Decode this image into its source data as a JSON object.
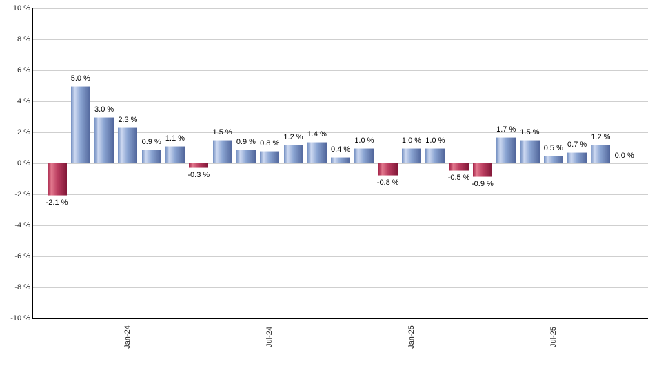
{
  "chart_data": {
    "type": "bar",
    "title": "",
    "xlabel": "",
    "ylabel": "",
    "ylim": [
      -10,
      10
    ],
    "y_tick_step": 2,
    "grid": true,
    "legend": "none",
    "values": [
      -2.1,
      5.0,
      3.0,
      2.3,
      0.9,
      1.1,
      -0.3,
      1.5,
      0.9,
      0.8,
      1.2,
      1.4,
      0.4,
      1.0,
      -0.8,
      1.0,
      1.0,
      -0.5,
      -0.9,
      1.7,
      1.5,
      0.5,
      0.7,
      1.2,
      0.0
    ],
    "bar_labels": [
      "-2.1 %",
      "5.0 %",
      "3.0 %",
      "2.3 %",
      "0.9 %",
      "1.1 %",
      "-0.3 %",
      "1.5 %",
      "0.9 %",
      "0.8 %",
      "1.2 %",
      "1.4 %",
      "0.4 %",
      "1.0 %",
      "-0.8 %",
      "1.0 %",
      "1.0 %",
      "-0.5 %",
      "-0.9 %",
      "1.7 %",
      "1.5 %",
      "0.5 %",
      "0.7 %",
      "1.2 %",
      "0.0 %"
    ],
    "y_tick_labels": [
      "10 %",
      "8 %",
      "6 %",
      "4 %",
      "2 %",
      "0 %",
      "-2 %",
      "-4 %",
      "-6 %",
      "-8 %",
      "-10 %"
    ],
    "x_ticks": [
      {
        "label": "Jan-24",
        "bar_index": 3
      },
      {
        "label": "Jul-24",
        "bar_index": 9
      },
      {
        "label": "Jan-25",
        "bar_index": 15
      },
      {
        "label": "Jul-25",
        "bar_index": 21
      }
    ],
    "colors": {
      "positive_gradient": [
        "#7490c2",
        "#cdd9f1",
        "#8aa4d2",
        "#51669b"
      ],
      "negative_gradient": [
        "#a52248",
        "#e2798e",
        "#bc3f61",
        "#821738"
      ],
      "gridline": "#cfcfcf",
      "axis": "#000000",
      "label_text": "#000000"
    }
  }
}
